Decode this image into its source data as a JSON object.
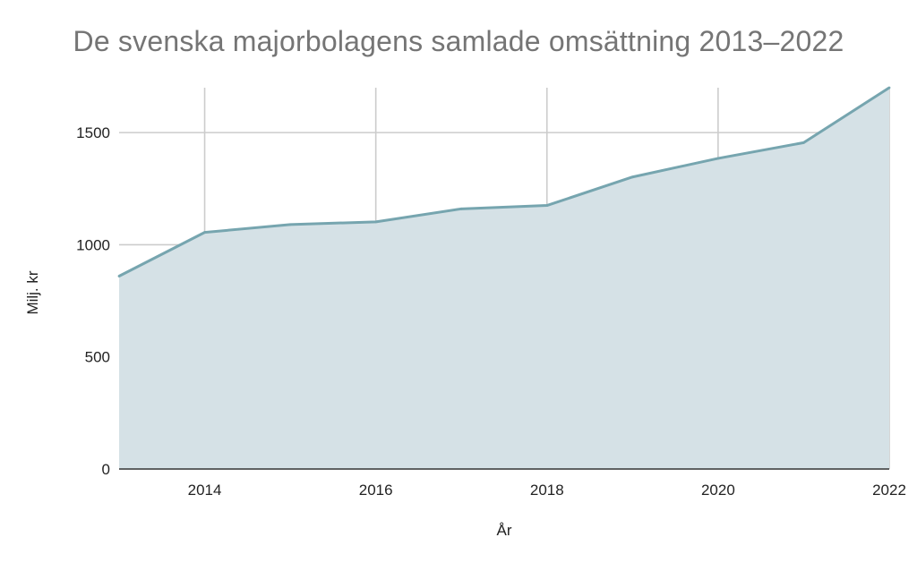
{
  "chart_data": {
    "type": "area",
    "title": "De svenska majorbolagens samlade omsättning 2013–2022",
    "xlabel": "År",
    "ylabel": "Milj. kr",
    "x": [
      2013,
      2014,
      2015,
      2016,
      2017,
      2018,
      2019,
      2020,
      2021,
      2022
    ],
    "x_ticks": [
      2014,
      2016,
      2018,
      2020,
      2022
    ],
    "series": [
      {
        "values": [
          860,
          1055,
          1090,
          1102,
          1160,
          1175,
          1302,
          1385,
          1455,
          1700
        ]
      }
    ],
    "xlim": [
      2013,
      2022
    ],
    "ylim": [
      0,
      1700
    ],
    "y_ticks": [
      0,
      500,
      1000,
      1500
    ],
    "grid": true,
    "colors": {
      "line": "#76a5af",
      "fill": "#d5e1e6",
      "grid": "#cccccc",
      "axis": "#333333"
    }
  }
}
